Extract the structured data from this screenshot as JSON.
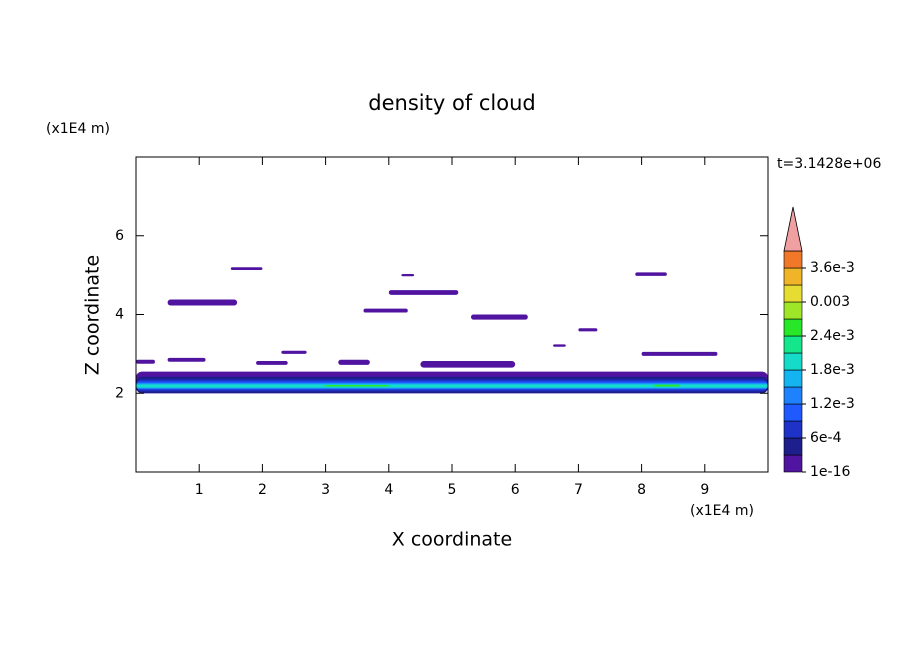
{
  "chart_data": {
    "type": "contour",
    "title": "density of cloud",
    "xlabel": "X coordinate",
    "ylabel": "Z coordinate",
    "xunit": "(x1E4 m)",
    "yunit": "(x1E4 m)",
    "time_label": "t=3.1428e+06",
    "xlim": [
      0,
      10
    ],
    "ylim": [
      0,
      8
    ],
    "xticks": [
      1,
      2,
      3,
      4,
      5,
      6,
      7,
      8,
      9
    ],
    "yticks": [
      2,
      4,
      6
    ],
    "colorbar": {
      "clim": [
        1e-16,
        0.0039
      ],
      "colors": [
        "#5014a0",
        "#1e1e8c",
        "#1e32c8",
        "#1e5aff",
        "#1e82ff",
        "#14b4f0",
        "#14dcc8",
        "#14e68c",
        "#28e628",
        "#a0e628",
        "#e6dc32",
        "#f0b428",
        "#f07828"
      ],
      "extend_color": "#f0a0a0",
      "ticks": [
        {
          "value": 1e-16,
          "label": "1e-16"
        },
        {
          "value": 0.0006,
          "label": "6e-4"
        },
        {
          "value": 0.0012,
          "label": "1.2e-3"
        },
        {
          "value": 0.0018,
          "label": "1.8e-3"
        },
        {
          "value": 0.0024,
          "label": "2.4e-3"
        },
        0.003,
        {
          "value": 0.0036,
          "label": "3.6e-3"
        }
      ]
    },
    "regions": [
      {
        "x": [
          0.5,
          1.6
        ],
        "z": [
          4.23,
          4.38
        ],
        "value": 0.00015
      },
      {
        "x": [
          1.5,
          2.0
        ],
        "z": [
          5.13,
          5.2
        ],
        "value": 0.00015
      },
      {
        "x": [
          3.6,
          4.3
        ],
        "z": [
          4.05,
          4.15
        ],
        "value": 0.00015
      },
      {
        "x": [
          4.0,
          5.1
        ],
        "z": [
          4.5,
          4.62
        ],
        "value": 0.00015
      },
      {
        "x": [
          4.2,
          4.4
        ],
        "z": [
          4.97,
          5.03
        ],
        "value": 0.00015
      },
      {
        "x": [
          5.3,
          6.2
        ],
        "z": [
          3.87,
          4.0
        ],
        "value": 0.00015
      },
      {
        "x": [
          7.0,
          7.3
        ],
        "z": [
          3.57,
          3.65
        ],
        "value": 0.00015
      },
      {
        "x": [
          7.9,
          8.4
        ],
        "z": [
          4.98,
          5.07
        ],
        "value": 0.00015
      },
      {
        "x": [
          2.3,
          2.7
        ],
        "z": [
          3.0,
          3.08
        ],
        "value": 0.00015
      },
      {
        "x": [
          0.5,
          1.1
        ],
        "z": [
          2.8,
          2.9
        ],
        "value": 0.00015
      },
      {
        "x": [
          0.0,
          0.3
        ],
        "z": [
          2.75,
          2.85
        ],
        "value": 0.00015
      },
      {
        "x": [
          1.9,
          2.4
        ],
        "z": [
          2.72,
          2.82
        ],
        "value": 0.00015
      },
      {
        "x": [
          3.2,
          3.7
        ],
        "z": [
          2.72,
          2.85
        ],
        "value": 0.00015
      },
      {
        "x": [
          4.5,
          6.0
        ],
        "z": [
          2.65,
          2.82
        ],
        "value": 0.00015
      },
      {
        "x": [
          8.0,
          9.2
        ],
        "z": [
          2.95,
          3.05
        ],
        "value": 0.00015
      },
      {
        "x": [
          6.6,
          6.8
        ],
        "z": [
          3.18,
          3.24
        ],
        "value": 0.00015
      },
      {
        "x": [
          0.0,
          10.0
        ],
        "z": [
          2.0,
          2.55
        ],
        "value": 0.00015
      },
      {
        "x": [
          0.0,
          10.0
        ],
        "z": [
          2.0,
          2.42
        ],
        "value": 0.00045
      },
      {
        "x": [
          0.0,
          10.0
        ],
        "z": [
          2.05,
          2.35
        ],
        "value": 0.00075
      },
      {
        "x": [
          0.0,
          10.0
        ],
        "z": [
          2.1,
          2.3
        ],
        "value": 0.00105
      },
      {
        "x": [
          0.0,
          10.0
        ],
        "z": [
          2.12,
          2.25
        ],
        "value": 0.00165
      },
      {
        "x": [
          0.0,
          10.0
        ],
        "z": [
          2.15,
          2.22
        ],
        "value": 0.00195
      },
      {
        "x": [
          3.0,
          4.0
        ],
        "z": [
          2.17,
          2.21
        ],
        "value": 0.00255
      },
      {
        "x": [
          8.2,
          8.6
        ],
        "z": [
          2.17,
          2.22
        ],
        "value": 0.00255
      }
    ]
  }
}
